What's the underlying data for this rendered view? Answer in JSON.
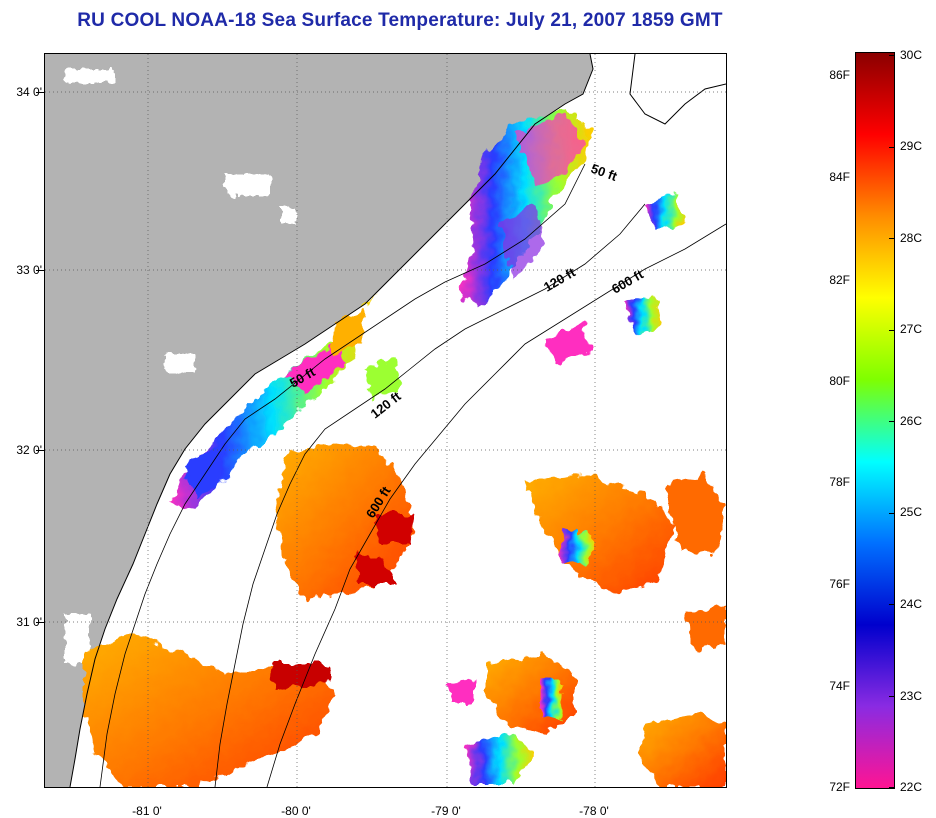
{
  "title": "RU COOL  NOAA-18  Sea Surface Temperature:  July 21, 2007 1859 GMT",
  "map": {
    "x_ticks": [
      "-81 0'",
      "-80 0'",
      "-79 0'",
      "-78 0'"
    ],
    "y_ticks": [
      "34 0'",
      "33 0'",
      "32 0'",
      "31 0'"
    ],
    "contour_labels": {
      "c50_north": "50 ft",
      "c50_south": "50 ft",
      "c120_north": "120 ft",
      "c120_south": "120 ft",
      "c600_north": "600 ft",
      "c600_south": "600 ft"
    },
    "colors": {
      "land": "#b3b3b3",
      "water_no_data": "#ffffff"
    }
  },
  "colorbar": {
    "fahrenheit_labels": [
      "86F",
      "84F",
      "82F",
      "80F",
      "78F",
      "76F",
      "74F",
      "72F"
    ],
    "celsius_labels": [
      "30C",
      "29C",
      "28C",
      "27C",
      "26C",
      "25C",
      "24C",
      "23C",
      "22C"
    ],
    "gradient_colors": [
      "#8b0000",
      "#ff0000",
      "#ff8c00",
      "#ffff00",
      "#7fff00",
      "#00ffff",
      "#0070ff",
      "#0000cd",
      "#8a2be2",
      "#ff1493"
    ]
  }
}
